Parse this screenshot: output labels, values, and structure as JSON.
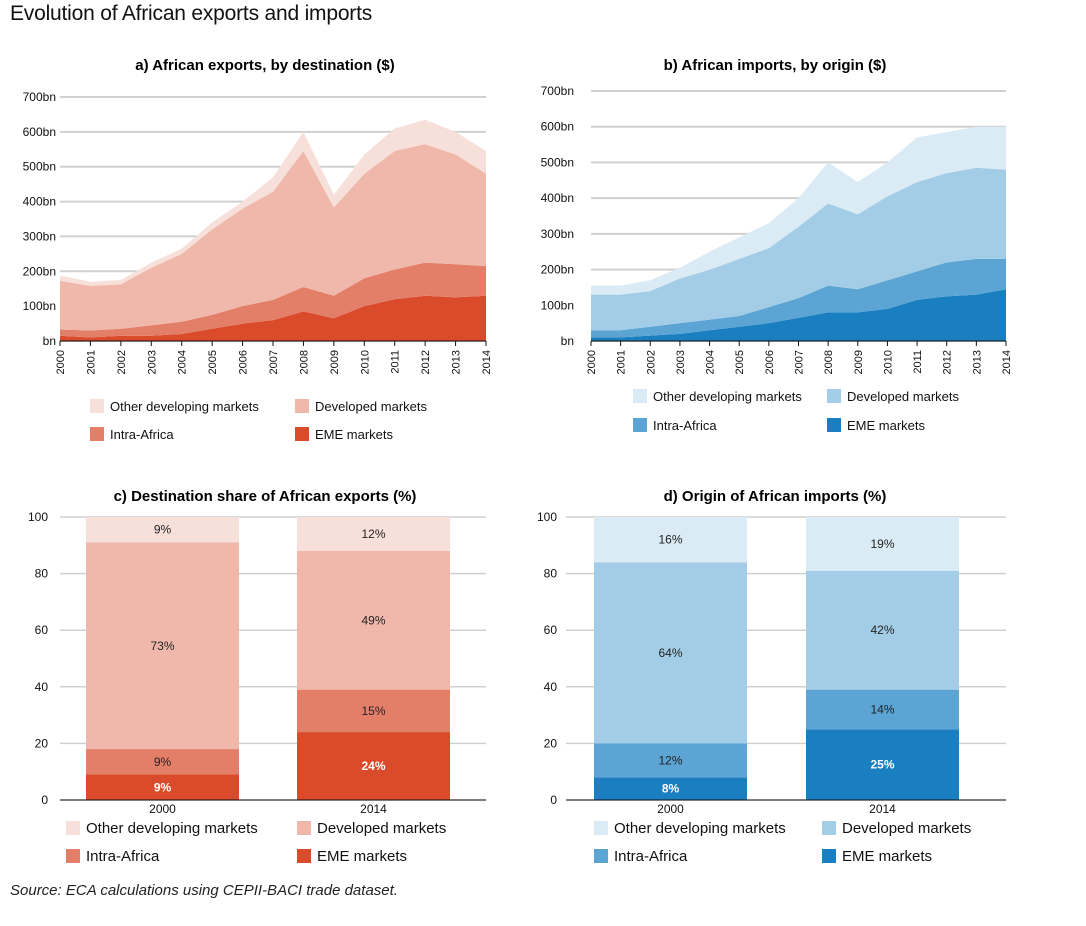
{
  "title": "Evolution of African exports and imports",
  "source": "Source: ECA calculations using CEPII-BACI trade dataset.",
  "chart_data": [
    {
      "id": "a",
      "type": "area",
      "stacked": true,
      "title": "a) African exports, by destination ($)",
      "x": [
        "2000",
        "2001",
        "2002",
        "2003",
        "2004",
        "2005",
        "2006",
        "2007",
        "2008",
        "2009",
        "2010",
        "2011",
        "2012",
        "2013",
        "2014"
      ],
      "ylim": [
        0,
        700
      ],
      "yticks": [
        "bn",
        "100bn",
        "200bn",
        "300bn",
        "400bn",
        "500bn",
        "600bn",
        "700bn"
      ],
      "grid": true,
      "series": [
        {
          "name": "EME markets",
          "color": "#d94b2b",
          "values": [
            15,
            10,
            15,
            15,
            20,
            35,
            50,
            60,
            85,
            65,
            100,
            120,
            130,
            125,
            130
          ]
        },
        {
          "name": "Intra-Africa",
          "color": "#e37f68",
          "values": [
            18,
            20,
            20,
            30,
            35,
            40,
            50,
            58,
            70,
            65,
            80,
            85,
            95,
            95,
            85
          ]
        },
        {
          "name": "Developed markets",
          "color": "#efb8ab",
          "values": [
            140,
            128,
            128,
            165,
            195,
            245,
            280,
            310,
            390,
            253,
            300,
            340,
            340,
            315,
            265
          ]
        },
        {
          "name": "Other developing markets",
          "color": "#f8e0da",
          "values": [
            15,
            12,
            12,
            15,
            15,
            20,
            20,
            42,
            55,
            37,
            55,
            65,
            70,
            65,
            65
          ]
        }
      ],
      "legend": [
        {
          "name": "Other developing markets",
          "color": "#f8e0da"
        },
        {
          "name": "Developed markets",
          "color": "#efb8ab"
        },
        {
          "name": "Intra-Africa",
          "color": "#e37f68"
        },
        {
          "name": "EME markets",
          "color": "#d94b2b"
        }
      ]
    },
    {
      "id": "b",
      "type": "area",
      "stacked": true,
      "title": "b) African imports, by origin ($)",
      "x": [
        "2000",
        "2001",
        "2002",
        "2003",
        "2004",
        "2005",
        "2006",
        "2007",
        "2008",
        "2009",
        "2010",
        "2011",
        "2012",
        "2013",
        "2014"
      ],
      "ylim": [
        0,
        700
      ],
      "yticks": [
        "bn",
        "100bn",
        "200bn",
        "300bn",
        "400bn",
        "500bn",
        "600bn",
        "700bn"
      ],
      "grid": true,
      "series": [
        {
          "name": "EME markets",
          "color": "#1a7fc1",
          "values": [
            10,
            10,
            15,
            20,
            30,
            40,
            50,
            65,
            80,
            80,
            90,
            115,
            125,
            130,
            145
          ]
        },
        {
          "name": "Intra-Africa",
          "color": "#5ba4d4",
          "values": [
            20,
            20,
            25,
            30,
            30,
            30,
            45,
            55,
            75,
            65,
            80,
            80,
            95,
            100,
            85
          ]
        },
        {
          "name": "Developed markets",
          "color": "#a3cde6",
          "values": [
            100,
            100,
            100,
            125,
            140,
            160,
            165,
            200,
            230,
            210,
            235,
            250,
            250,
            255,
            250
          ]
        },
        {
          "name": "Other developing markets",
          "color": "#daebf5",
          "values": [
            25,
            25,
            30,
            30,
            50,
            60,
            70,
            80,
            115,
            90,
            95,
            125,
            115,
            115,
            120
          ]
        }
      ],
      "legend": [
        {
          "name": "Other developing markets",
          "color": "#daebf5"
        },
        {
          "name": "Developed markets",
          "color": "#a3cde6"
        },
        {
          "name": "Intra-Africa",
          "color": "#5ba4d4"
        },
        {
          "name": "EME markets",
          "color": "#1a7fc1"
        }
      ]
    },
    {
      "id": "c",
      "type": "bar",
      "stacked": true,
      "title": "c) Destination share of African exports (%)",
      "categories": [
        "2000",
        "2014"
      ],
      "ylim": [
        0,
        100
      ],
      "yticks": [
        "0",
        "20",
        "40",
        "60",
        "80",
        "100"
      ],
      "grid": true,
      "series": [
        {
          "name": "EME markets",
          "color": "#d94b2b",
          "values": [
            9,
            24
          ],
          "labels": [
            "9%",
            "24%"
          ]
        },
        {
          "name": "Intra-Africa",
          "color": "#e37f68",
          "values": [
            9,
            15
          ],
          "labels": [
            "9%",
            "15%"
          ]
        },
        {
          "name": "Developed markets",
          "color": "#efb8ab",
          "values": [
            73,
            49
          ],
          "labels": [
            "73%",
            "49%"
          ]
        },
        {
          "name": "Other developing markets",
          "color": "#f8e0da",
          "values": [
            9,
            12
          ],
          "labels": [
            "9%",
            "12%"
          ]
        }
      ],
      "legend": [
        {
          "name": "Other developing markets",
          "color": "#f8e0da"
        },
        {
          "name": "Developed markets",
          "color": "#efb8ab"
        },
        {
          "name": "Intra-Africa",
          "color": "#e37f68"
        },
        {
          "name": "EME markets",
          "color": "#d94b2b"
        }
      ]
    },
    {
      "id": "d",
      "type": "bar",
      "stacked": true,
      "title": "d) Origin of African imports (%)",
      "categories": [
        "2000",
        "2014"
      ],
      "ylim": [
        0,
        100
      ],
      "yticks": [
        "0",
        "20",
        "40",
        "60",
        "80",
        "100"
      ],
      "grid": true,
      "series": [
        {
          "name": "EME markets",
          "color": "#1a7fc1",
          "values": [
            8,
            25
          ],
          "labels": [
            "8%",
            "25%"
          ]
        },
        {
          "name": "Intra-Africa",
          "color": "#5ba4d4",
          "values": [
            12,
            14
          ],
          "labels": [
            "12%",
            "14%"
          ]
        },
        {
          "name": "Developed markets",
          "color": "#a3cde6",
          "values": [
            64,
            42
          ],
          "labels": [
            "64%",
            "42%"
          ]
        },
        {
          "name": "Other developing markets",
          "color": "#daebf5",
          "values": [
            16,
            19
          ],
          "labels": [
            "16%",
            "19%"
          ]
        }
      ],
      "legend": [
        {
          "name": "Other developing markets",
          "color": "#daebf5"
        },
        {
          "name": "Developed markets",
          "color": "#a3cde6"
        },
        {
          "name": "Intra-Africa",
          "color": "#5ba4d4"
        },
        {
          "name": "EME markets",
          "color": "#1a7fc1"
        }
      ]
    }
  ]
}
